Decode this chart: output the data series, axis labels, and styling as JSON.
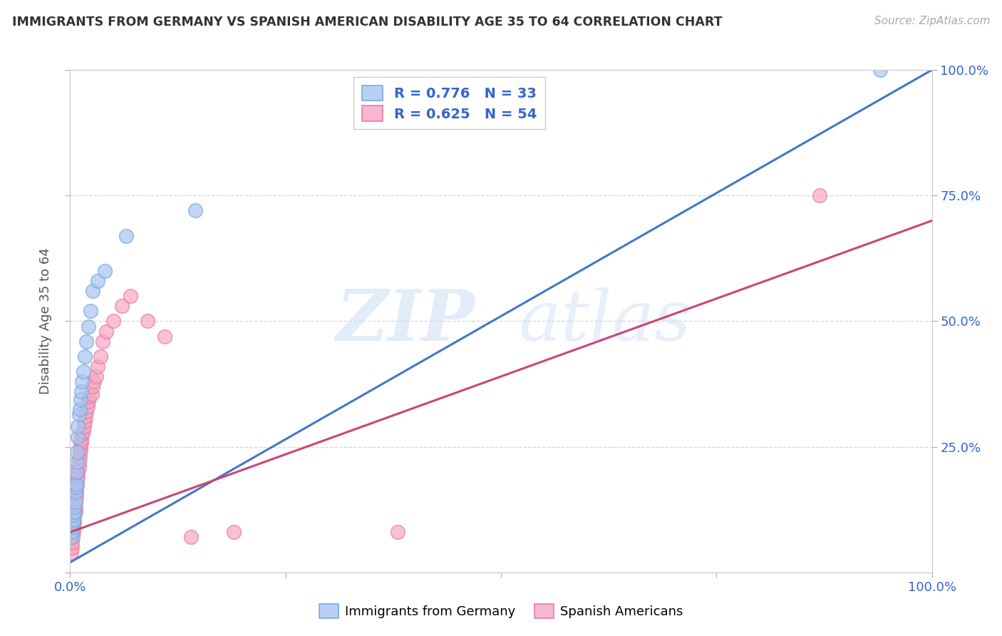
{
  "title": "IMMIGRANTS FROM GERMANY VS SPANISH AMERICAN DISABILITY AGE 35 TO 64 CORRELATION CHART",
  "source": "Source: ZipAtlas.com",
  "ylabel": "Disability Age 35 to 64",
  "xlim": [
    0,
    1.0
  ],
  "ylim": [
    0,
    1.0
  ],
  "germany_R": 0.776,
  "germany_N": 33,
  "spanish_R": 0.625,
  "spanish_N": 54,
  "germany_color": "#a8c4f0",
  "german_edge_color": "#7aaade",
  "spanish_color": "#f5a8c0",
  "spanish_edge_color": "#e87aaa",
  "germany_line_color": "#4477cc",
  "spanish_line_color": "#cc4477",
  "watermark_zip": "ZIP",
  "watermark_atlas": "atlas",
  "legend_label_germany": "Immigrants from Germany",
  "legend_label_spanish": "Spanish Americans",
  "germany_line_x0": 0.0,
  "germany_line_y0": 0.02,
  "germany_line_x1": 1.0,
  "germany_line_y1": 1.0,
  "spanish_line_x0": 0.0,
  "spanish_line_y0": 0.08,
  "spanish_line_x1": 1.0,
  "spanish_line_y1": 0.7,
  "germany_pts_x": [
    0.001,
    0.002,
    0.003,
    0.003,
    0.004,
    0.004,
    0.005,
    0.005,
    0.006,
    0.006,
    0.007,
    0.007,
    0.007,
    0.008,
    0.008,
    0.009,
    0.009,
    0.01,
    0.011,
    0.012,
    0.013,
    0.014,
    0.015,
    0.017,
    0.019,
    0.021,
    0.024,
    0.026,
    0.032,
    0.04,
    0.065,
    0.145,
    0.94
  ],
  "germany_pts_y": [
    0.07,
    0.08,
    0.09,
    0.1,
    0.105,
    0.115,
    0.12,
    0.13,
    0.14,
    0.16,
    0.17,
    0.175,
    0.2,
    0.22,
    0.24,
    0.27,
    0.29,
    0.315,
    0.325,
    0.345,
    0.36,
    0.38,
    0.4,
    0.43,
    0.46,
    0.49,
    0.52,
    0.56,
    0.58,
    0.6,
    0.67,
    0.72,
    1.0
  ],
  "spanish_pts_x": [
    0.001,
    0.002,
    0.002,
    0.003,
    0.003,
    0.004,
    0.004,
    0.005,
    0.005,
    0.005,
    0.006,
    0.006,
    0.006,
    0.007,
    0.007,
    0.007,
    0.008,
    0.008,
    0.009,
    0.009,
    0.01,
    0.01,
    0.011,
    0.011,
    0.012,
    0.012,
    0.013,
    0.013,
    0.014,
    0.015,
    0.016,
    0.017,
    0.018,
    0.019,
    0.02,
    0.021,
    0.022,
    0.025,
    0.026,
    0.028,
    0.03,
    0.032,
    0.035,
    0.038,
    0.042,
    0.05,
    0.06,
    0.07,
    0.09,
    0.11,
    0.14,
    0.19,
    0.38,
    0.87
  ],
  "spanish_pts_y": [
    0.04,
    0.05,
    0.06,
    0.07,
    0.08,
    0.08,
    0.09,
    0.1,
    0.1,
    0.11,
    0.12,
    0.13,
    0.14,
    0.15,
    0.16,
    0.17,
    0.175,
    0.185,
    0.19,
    0.2,
    0.21,
    0.22,
    0.23,
    0.24,
    0.245,
    0.255,
    0.26,
    0.265,
    0.275,
    0.28,
    0.29,
    0.3,
    0.31,
    0.32,
    0.33,
    0.34,
    0.35,
    0.355,
    0.37,
    0.38,
    0.39,
    0.41,
    0.43,
    0.46,
    0.48,
    0.5,
    0.53,
    0.55,
    0.5,
    0.47,
    0.07,
    0.08,
    0.08,
    0.75
  ]
}
